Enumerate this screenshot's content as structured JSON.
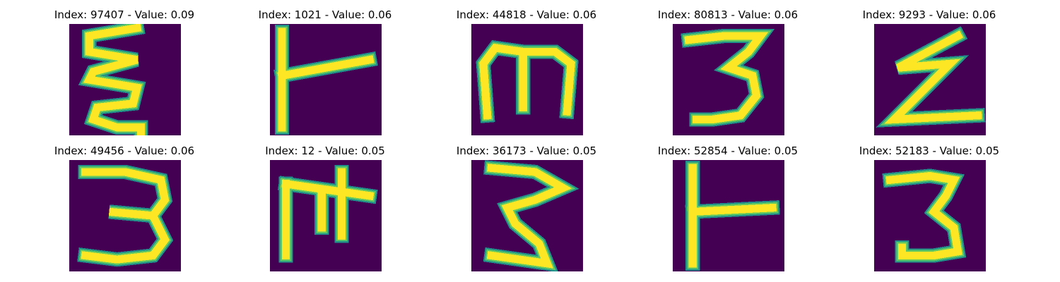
{
  "chart_data": {
    "type": "image-grid",
    "colormap": "viridis",
    "background_color": "#440154",
    "stroke_colors": [
      "#fde725",
      "#5ec962",
      "#21918c"
    ],
    "axes_visible": false,
    "panels": [
      {
        "title": "Index: 97407 - Value: 0.09",
        "index": 97407,
        "value": 0.09,
        "glyph": "Ɛ (zigzag)"
      },
      {
        "title": "Index: 1021 - Value: 0.06",
        "index": 1021,
        "value": 0.06,
        "glyph": "ト"
      },
      {
        "title": "Index: 44818 - Value: 0.06",
        "index": 44818,
        "value": 0.06,
        "glyph": "m"
      },
      {
        "title": "Index: 80813 - Value: 0.06",
        "index": 80813,
        "value": 0.06,
        "glyph": "3"
      },
      {
        "title": "Index: 9293 - Value: 0.06",
        "index": 9293,
        "value": 0.06,
        "glyph": "Z"
      },
      {
        "title": "Index: 49456 - Value: 0.06",
        "index": 49456,
        "value": 0.06,
        "glyph": "3"
      },
      {
        "title": "Index: 12 - Value: 0.05",
        "index": 12,
        "value": 0.05,
        "glyph": "ホ"
      },
      {
        "title": "Index: 36173 - Value: 0.05",
        "index": 36173,
        "value": 0.05,
        "glyph": "3"
      },
      {
        "title": "Index: 52854 - Value: 0.05",
        "index": 52854,
        "value": 0.05,
        "glyph": "ト"
      },
      {
        "title": "Index: 52183 - Value: 0.05",
        "index": 52183,
        "value": 0.05,
        "glyph": "3"
      }
    ]
  }
}
